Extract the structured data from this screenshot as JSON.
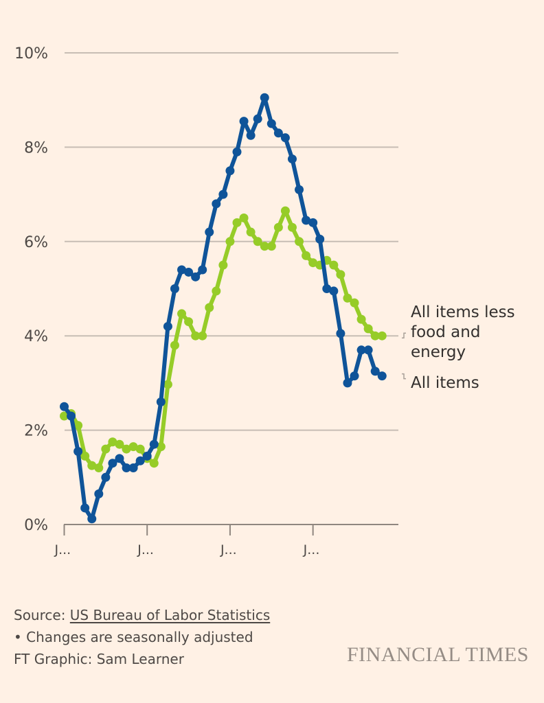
{
  "chart_data": {
    "type": "line",
    "title": "",
    "xlabel": "",
    "ylabel": "",
    "ylim": [
      0,
      10
    ],
    "y_ticks": [
      0,
      2,
      4,
      6,
      8,
      10
    ],
    "y_tick_labels": [
      "0%",
      "2%",
      "4%",
      "6%",
      "8%",
      "10%"
    ],
    "x_tick_labels": [
      "J...",
      "J...",
      "J...",
      "J..."
    ],
    "x_tick_positions": [
      0,
      12,
      24,
      36
    ],
    "x_range": [
      0,
      47
    ],
    "grid": true,
    "legend": "direct labels at right",
    "series": [
      {
        "name": "All items",
        "label_lines": [
          "All items"
        ],
        "color": "#0f5499",
        "values": [
          2.5,
          2.3,
          1.55,
          0.35,
          0.12,
          0.65,
          1.0,
          1.3,
          1.4,
          1.2,
          1.2,
          1.35,
          1.45,
          1.7,
          2.6,
          4.2,
          5.0,
          5.4,
          5.35,
          5.25,
          5.4,
          6.2,
          6.8,
          7.0,
          7.5,
          7.9,
          8.55,
          8.25,
          8.6,
          9.05,
          8.5,
          8.3,
          8.2,
          7.75,
          7.1,
          6.45,
          6.4,
          6.05,
          5.0,
          4.95,
          4.05,
          3.0,
          3.15,
          3.7,
          3.7,
          3.25,
          3.15
        ]
      },
      {
        "name": "All items less food and energy",
        "label_lines": [
          "All items less",
          "food and",
          "energy"
        ],
        "color": "#96cc28",
        "values": [
          2.3,
          2.35,
          2.1,
          1.45,
          1.25,
          1.2,
          1.6,
          1.75,
          1.7,
          1.6,
          1.65,
          1.6,
          1.4,
          1.3,
          1.65,
          2.97,
          3.8,
          4.47,
          4.3,
          4.0,
          4.0,
          4.6,
          4.95,
          5.5,
          6.0,
          6.4,
          6.5,
          6.2,
          6.0,
          5.9,
          5.9,
          6.3,
          6.65,
          6.3,
          6.0,
          5.7,
          5.55,
          5.5,
          5.6,
          5.5,
          5.3,
          4.8,
          4.7,
          4.35,
          4.15,
          4.0,
          4.0
        ]
      }
    ]
  },
  "footer": {
    "source_prefix": "Source: ",
    "source_link": "US Bureau of Labor Statistics",
    "note": "• Changes are seasonally adjusted",
    "credit": "FT Graphic: Sam Learner"
  },
  "brand": "FINANCIAL TIMES",
  "colors": {
    "background": "#fff1e5",
    "gridline": "#c7bdb4",
    "axis": "#8f867f",
    "text": "#33302e"
  }
}
